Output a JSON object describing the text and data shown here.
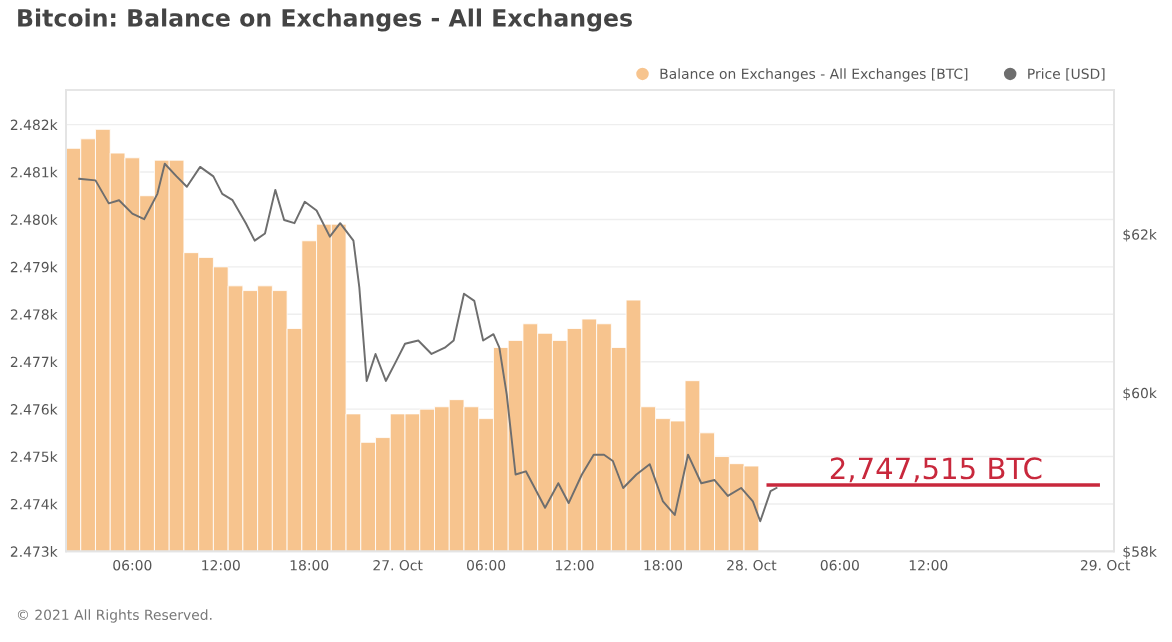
{
  "chart_data": {
    "type": "bar",
    "title": "Bitcoin: Balance on Exchanges - All Exchanges",
    "x": [
      "2021-10-26T02:00",
      "2021-10-26T03:00",
      "2021-10-26T04:00",
      "2021-10-26T05:00",
      "2021-10-26T06:00",
      "2021-10-26T07:00",
      "2021-10-26T08:00",
      "2021-10-26T09:00",
      "2021-10-26T10:00",
      "2021-10-26T11:00",
      "2021-10-26T12:00",
      "2021-10-26T13:00",
      "2021-10-26T14:00",
      "2021-10-26T15:00",
      "2021-10-26T16:00",
      "2021-10-26T17:00",
      "2021-10-26T18:00",
      "2021-10-26T19:00",
      "2021-10-26T20:00",
      "2021-10-26T21:00",
      "2021-10-26T22:00",
      "2021-10-26T23:00",
      "2021-10-27T00:00",
      "2021-10-27T01:00",
      "2021-10-27T02:00",
      "2021-10-27T03:00",
      "2021-10-27T04:00",
      "2021-10-27T05:00",
      "2021-10-27T06:00",
      "2021-10-27T07:00",
      "2021-10-27T08:00",
      "2021-10-27T09:00",
      "2021-10-27T10:00",
      "2021-10-27T11:00",
      "2021-10-27T12:00",
      "2021-10-27T13:00",
      "2021-10-27T14:00",
      "2021-10-27T15:00",
      "2021-10-27T16:00",
      "2021-10-27T17:00",
      "2021-10-27T18:00",
      "2021-10-27T19:00",
      "2021-10-27T20:00",
      "2021-10-27T21:00",
      "2021-10-27T22:00",
      "2021-10-27T23:00",
      "2021-10-28T00:00"
    ],
    "series": [
      {
        "name": "Balance on Exchanges - All Exchanges [BTC]",
        "color": "#f7c48e",
        "values": [
          2481.5,
          2481.7,
          2481.9,
          2481.4,
          2481.3,
          2480.5,
          2481.25,
          2481.25,
          2479.3,
          2479.2,
          2479.0,
          2478.6,
          2478.5,
          2478.6,
          2478.5,
          2477.7,
          2479.55,
          2479.9,
          2479.9,
          2475.9,
          2475.3,
          2475.4,
          2475.9,
          2475.9,
          2476.0,
          2476.05,
          2476.2,
          2476.05,
          2475.8,
          2477.3,
          2477.45,
          2477.8,
          2477.6,
          2477.45,
          2477.7,
          2477.9,
          2477.8,
          2477.3,
          2478.3,
          2476.05,
          2475.8,
          2475.75,
          2476.6,
          2475.5,
          2475.0,
          2474.85,
          2474.8
        ]
      },
      {
        "name": "Price [USD]",
        "type": "line",
        "axis": "y2",
        "color": "#6e6e6e",
        "x": [
          "2021-10-26T02:24",
          "2021-10-26T03:30",
          "2021-10-26T04:24",
          "2021-10-26T05:06",
          "2021-10-26T06:00",
          "2021-10-26T06:48",
          "2021-10-26T07:42",
          "2021-10-26T08:12",
          "2021-10-26T09:00",
          "2021-10-26T09:42",
          "2021-10-26T10:36",
          "2021-10-26T11:30",
          "2021-10-26T12:06",
          "2021-10-26T12:48",
          "2021-10-26T13:42",
          "2021-10-26T14:18",
          "2021-10-26T15:00",
          "2021-10-26T15:42",
          "2021-10-26T16:18",
          "2021-10-26T17:00",
          "2021-10-26T17:42",
          "2021-10-26T18:30",
          "2021-10-26T19:24",
          "2021-10-26T20:06",
          "2021-10-26T21:00",
          "2021-10-26T21:24",
          "2021-10-26T21:54",
          "2021-10-26T22:30",
          "2021-10-26T23:12",
          "2021-10-26T23:54",
          "2021-10-27T00:30",
          "2021-10-27T01:24",
          "2021-10-27T02:18",
          "2021-10-27T03:12",
          "2021-10-27T03:48",
          "2021-10-27T04:30",
          "2021-10-27T05:12",
          "2021-10-27T05:48",
          "2021-10-27T06:30",
          "2021-10-27T06:54",
          "2021-10-27T07:24",
          "2021-10-27T08:00",
          "2021-10-27T08:42",
          "2021-10-27T09:18",
          "2021-10-27T10:00",
          "2021-10-27T10:54",
          "2021-10-27T11:36",
          "2021-10-27T12:30",
          "2021-10-27T13:18",
          "2021-10-27T14:00",
          "2021-10-27T14:36",
          "2021-10-27T15:18",
          "2021-10-27T16:12",
          "2021-10-27T17:06",
          "2021-10-27T18:00",
          "2021-10-27T18:48",
          "2021-10-27T19:42",
          "2021-10-27T20:36",
          "2021-10-27T21:30",
          "2021-10-27T22:24",
          "2021-10-27T23:18",
          "2021-10-28T00:06",
          "2021-10-28T00:36",
          "2021-10-28T01:18",
          "2021-10-28T01:42"
        ],
        "values": [
          62700,
          62680,
          62390,
          62430,
          62260,
          62190,
          62510,
          62890,
          62730,
          62600,
          62850,
          62730,
          62510,
          62430,
          62140,
          61920,
          62010,
          62560,
          62180,
          62140,
          62410,
          62300,
          61970,
          62140,
          61920,
          61330,
          60150,
          60490,
          60150,
          60400,
          60620,
          60660,
          60490,
          60570,
          60660,
          61250,
          61160,
          60660,
          60740,
          60570,
          59980,
          58970,
          59010,
          58800,
          58550,
          58860,
          58610,
          58970,
          59220,
          59220,
          59140,
          58800,
          58970,
          59100,
          58630,
          58460,
          59220,
          58860,
          58900,
          58700,
          58800,
          58630,
          58380,
          58760,
          58800
        ]
      }
    ],
    "xlim": [
      "2021-10-26T01:30",
      "2021-10-29T00:36"
    ],
    "xticks": [
      {
        "value": "2021-10-26T06:00",
        "label": "06:00"
      },
      {
        "value": "2021-10-26T12:00",
        "label": "12:00"
      },
      {
        "value": "2021-10-26T18:00",
        "label": "18:00"
      },
      {
        "value": "2021-10-27",
        "label": "27. Oct"
      },
      {
        "value": "2021-10-27T06:00",
        "label": "06:00"
      },
      {
        "value": "2021-10-27T12:00",
        "label": "12:00"
      },
      {
        "value": "2021-10-27T18:00",
        "label": "18:00"
      },
      {
        "value": "2021-10-28",
        "label": "28. Oct"
      },
      {
        "value": "2021-10-28T06:00",
        "label": "06:00"
      },
      {
        "value": "2021-10-28T12:00",
        "label": "12:00"
      },
      {
        "value": "2021-10-29",
        "label": "29. Oct"
      }
    ],
    "ylim": [
      2473,
      2482.73
    ],
    "yticks": [
      {
        "value": 2473,
        "label": "2.473k"
      },
      {
        "value": 2474,
        "label": "2.474k"
      },
      {
        "value": 2475,
        "label": "2.475k"
      },
      {
        "value": 2476,
        "label": "2.476k"
      },
      {
        "value": 2477,
        "label": "2.477k"
      },
      {
        "value": 2478,
        "label": "2.478k"
      },
      {
        "value": 2479,
        "label": "2.479k"
      },
      {
        "value": 2480,
        "label": "2.480k"
      },
      {
        "value": 2481,
        "label": "2.481k"
      },
      {
        "value": 2482,
        "label": "2.482k"
      }
    ],
    "y2lim": [
      58000,
      63820
    ],
    "y2ticks": [
      {
        "value": 58000,
        "label": "$58k"
      },
      {
        "value": 60000,
        "label": "$60k"
      },
      {
        "value": 62000,
        "label": "$62k"
      }
    ],
    "ref_lines": [
      {
        "axis": "y",
        "value": 2474.4,
        "label": "2,747,515 BTC",
        "color": "#c8283c"
      }
    ],
    "annotations": [
      "© 2021 All Rights Reserved."
    ],
    "grid": "y",
    "legend": "top right",
    "marker": "none"
  }
}
